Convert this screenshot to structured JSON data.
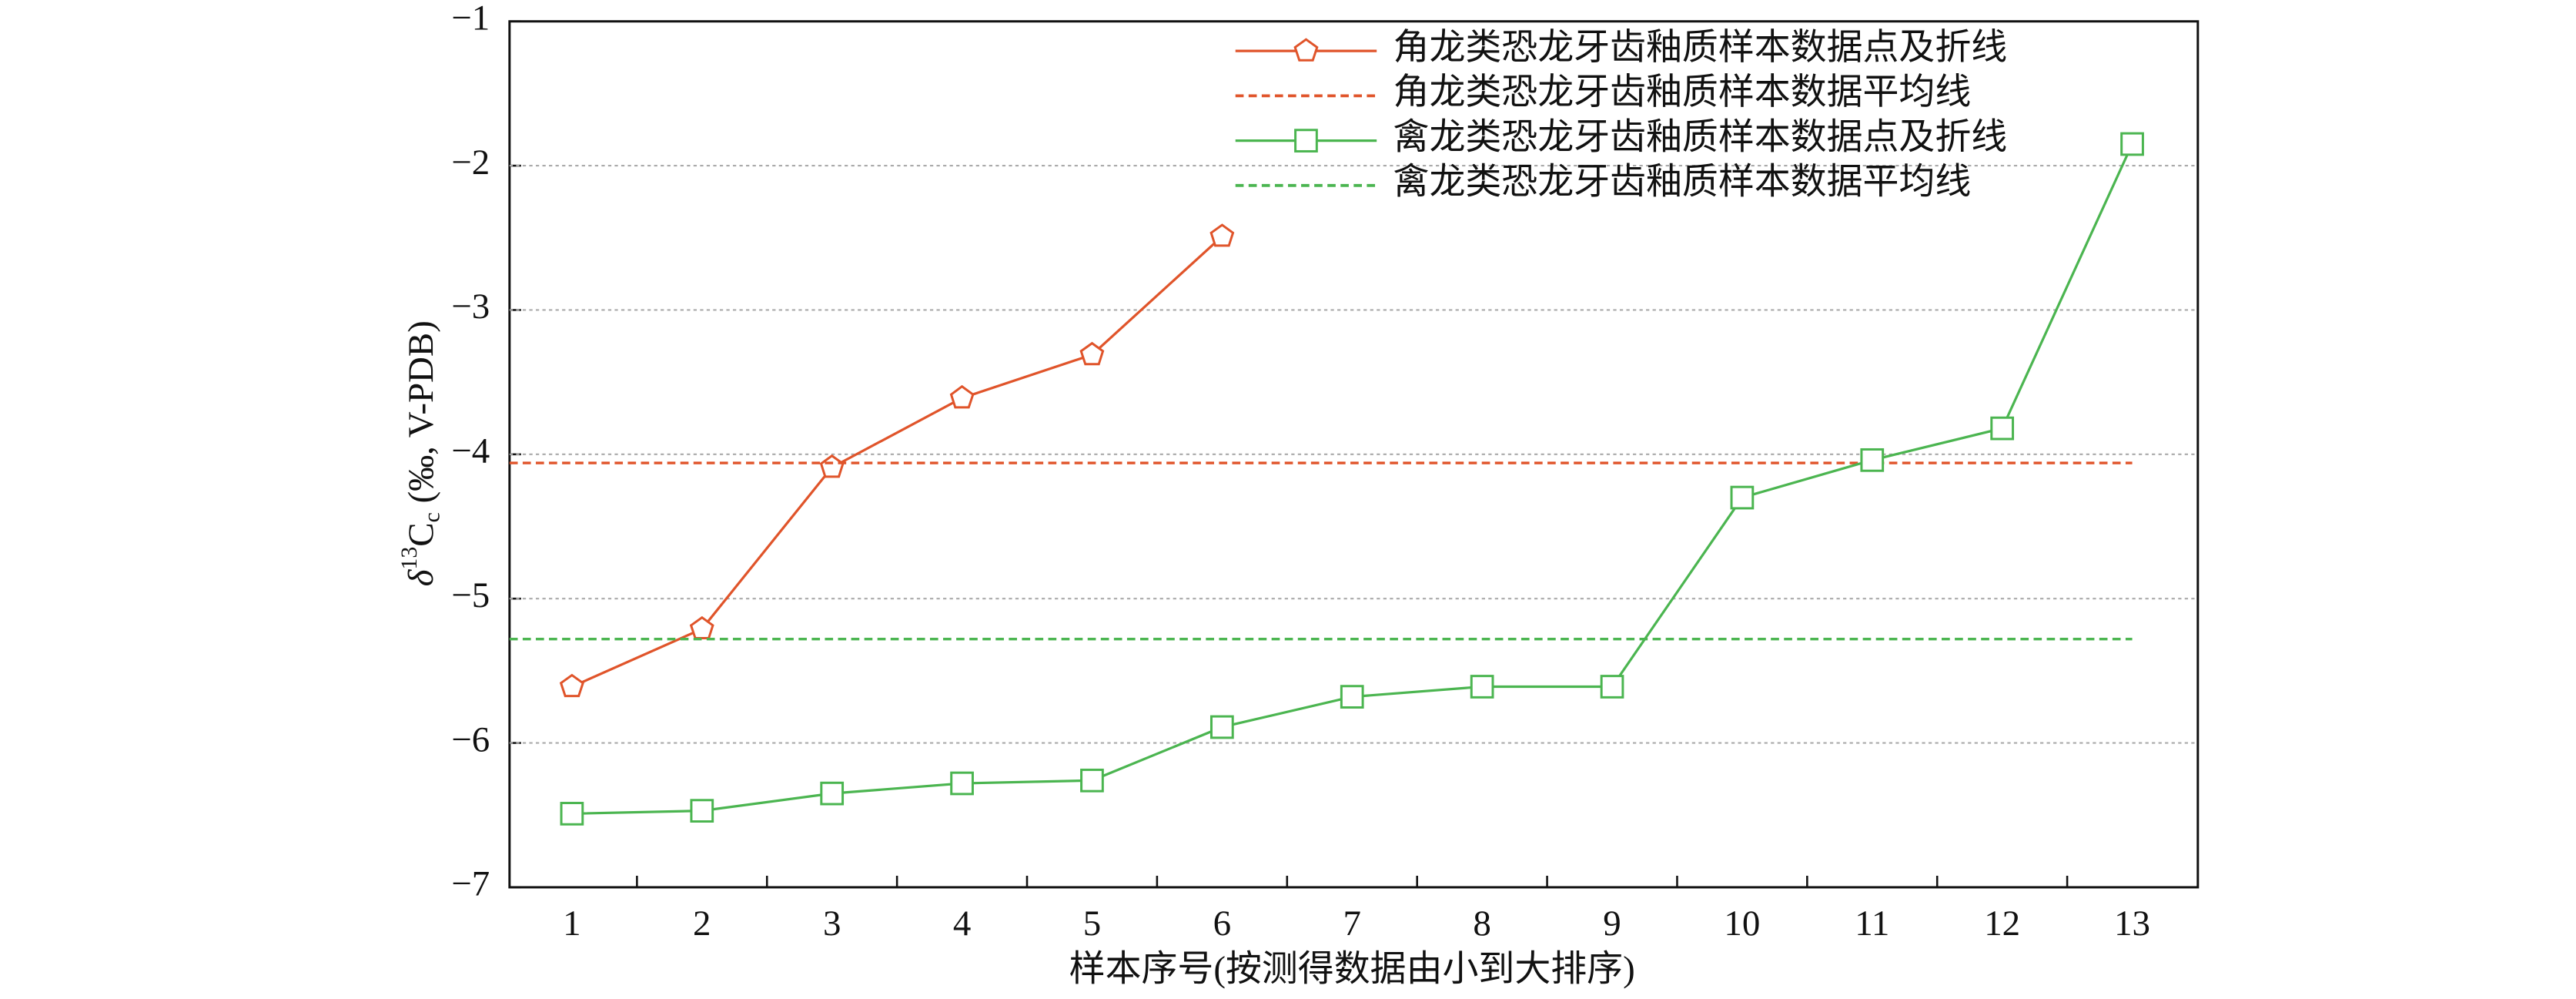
{
  "chart_data": {
    "type": "line",
    "x_label": "样本序号(按测得数据由小到大排序)",
    "y_label": {
      "delta": "δ",
      "superscript": "13",
      "base": "C",
      "subscript": "c",
      "rest": " (‰, V-PDB)"
    },
    "categories": [
      "1",
      "2",
      "3",
      "4",
      "5",
      "6",
      "7",
      "8",
      "9",
      "10",
      "11",
      "12",
      "13"
    ],
    "ylim": [
      -7,
      -1
    ],
    "yticks": [
      {
        "value": -1,
        "label": "−1"
      },
      {
        "value": -2,
        "label": "−2"
      },
      {
        "value": -3,
        "label": "−3"
      },
      {
        "value": -4,
        "label": "−4"
      },
      {
        "value": -5,
        "label": "−5"
      },
      {
        "value": -6,
        "label": "−6"
      },
      {
        "value": -7,
        "label": "−7"
      }
    ],
    "grid": true,
    "legend": "upper right",
    "series": [
      {
        "name": "角龙类恐龙牙齿釉质样本数据点及折线",
        "color": "#e0542a",
        "marker": "pentagon",
        "values": [
          -5.61,
          -5.21,
          -4.09,
          -3.61,
          -3.31,
          -2.49,
          null,
          null,
          null,
          null,
          null,
          null,
          null
        ]
      },
      {
        "name": "角龙类恐龙牙齿釉质样本数据平均线",
        "color": "#e0542a",
        "dashed": true,
        "mean": -4.06
      },
      {
        "name": "禽龙类恐龙牙齿釉质样本数据点及折线",
        "color": "#4bb550",
        "marker": "square",
        "values": [
          -6.49,
          -6.47,
          -6.35,
          -6.28,
          -6.26,
          -5.89,
          -5.68,
          -5.61,
          -5.61,
          -4.3,
          -4.04,
          -3.82,
          -1.85
        ]
      },
      {
        "name": "禽龙类恐龙牙齿釉质样本数据平均线",
        "color": "#4bb550",
        "dashed": true,
        "mean": -5.28
      }
    ]
  }
}
